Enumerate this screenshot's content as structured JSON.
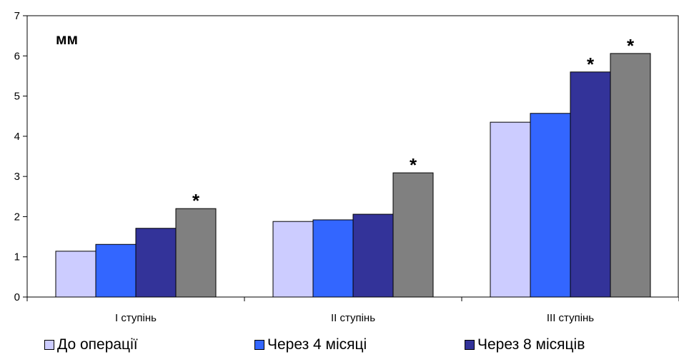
{
  "chart_data": {
    "type": "bar",
    "unit_label": "мм",
    "categories": [
      "І ступінь",
      "ІІ ступінь",
      "ІІІ ступінь"
    ],
    "series": [
      {
        "name": "До операції",
        "color": "#ccccff",
        "values": [
          1.14,
          1.88,
          4.35
        ]
      },
      {
        "name": "Через 4 місяці",
        "color": "#3366ff",
        "values": [
          1.31,
          1.92,
          4.57
        ]
      },
      {
        "name": "Через 8 місяців",
        "color": "#333399",
        "values": [
          1.71,
          2.06,
          5.6
        ]
      },
      {
        "name": "",
        "color": "#808080",
        "values": [
          2.2,
          3.09,
          6.06
        ]
      }
    ],
    "significance_marks": [
      {
        "category": 0,
        "series": 3,
        "text": "*"
      },
      {
        "category": 1,
        "series": 3,
        "text": "*"
      },
      {
        "category": 2,
        "series": 2,
        "text": "*"
      },
      {
        "category": 2,
        "series": 3,
        "text": "*"
      }
    ],
    "ylim": [
      0,
      7
    ],
    "yticks": [
      0,
      1,
      2,
      3,
      4,
      5,
      6,
      7
    ],
    "grid": false,
    "legend_position": "bottom"
  }
}
